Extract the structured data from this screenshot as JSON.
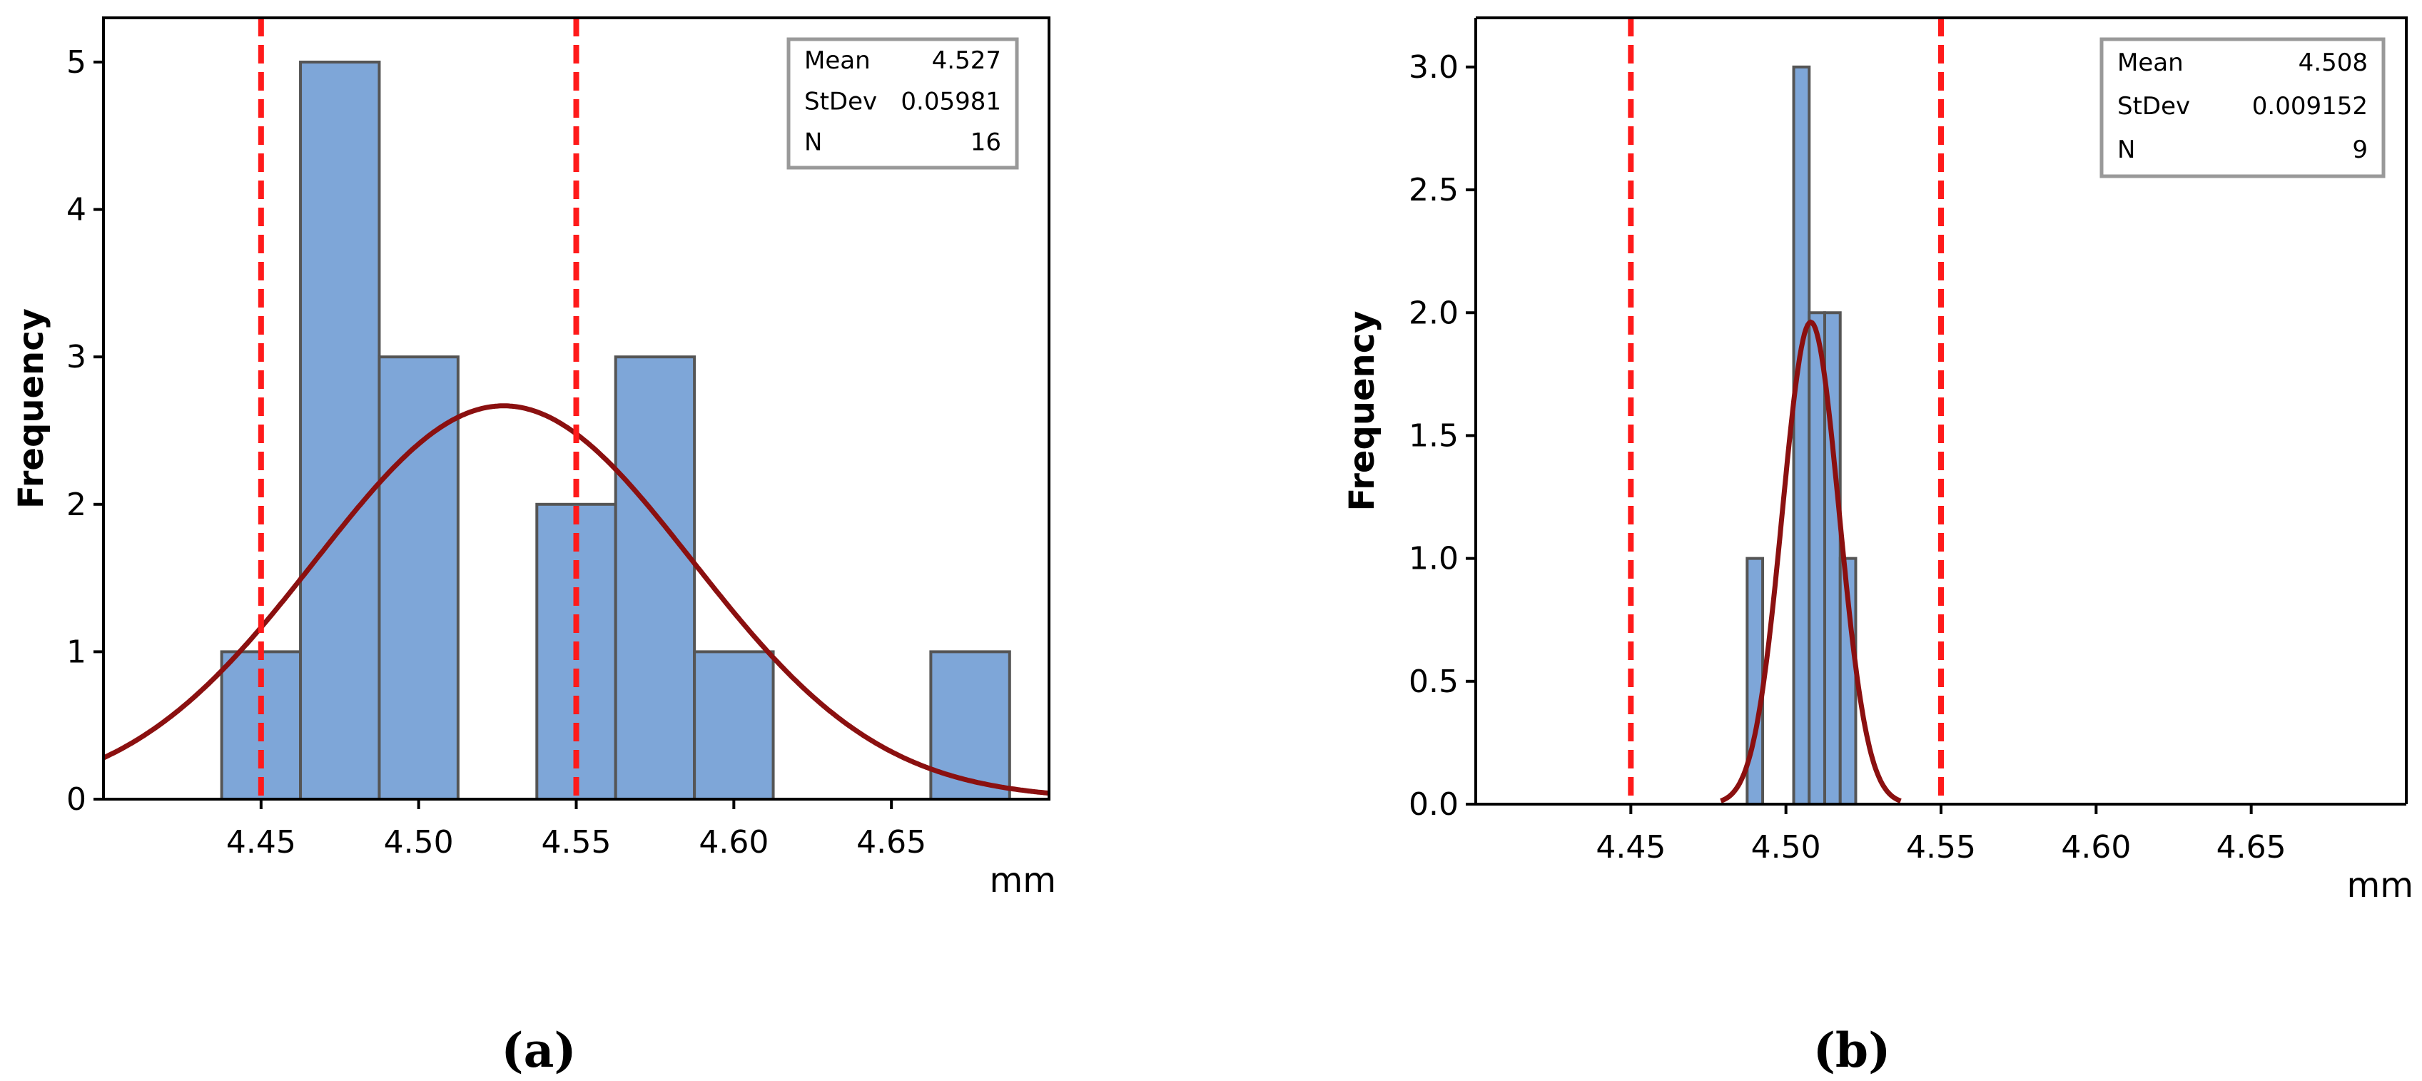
{
  "colors": {
    "bar_fill": "#7ea6d8",
    "bar_stroke": "#555555",
    "curve": "#8b1010",
    "spec_line": "#ff1a1a",
    "axis": "#000000",
    "legend_border": "#999999"
  },
  "chart_data": [
    {
      "type": "histogram",
      "panel_label": "(a)",
      "ylabel": "Frequency",
      "xlabel": "mm",
      "xlim": [
        4.4,
        4.7
      ],
      "ylim": [
        0,
        5.3
      ],
      "grid": false,
      "xticks": [
        4.45,
        4.5,
        4.55,
        4.6,
        4.65
      ],
      "xtick_labels": [
        "4.45",
        "4.50",
        "4.55",
        "4.60",
        "4.65"
      ],
      "yticks": [
        0,
        1,
        2,
        3,
        4,
        5
      ],
      "ytick_labels": [
        "0",
        "1",
        "2",
        "3",
        "4",
        "5"
      ],
      "bins": [
        {
          "left": 4.4375,
          "right": 4.4625,
          "count": 1
        },
        {
          "left": 4.4625,
          "right": 4.4875,
          "count": 5
        },
        {
          "left": 4.4875,
          "right": 4.5125,
          "count": 3
        },
        {
          "left": 4.5375,
          "right": 4.5625,
          "count": 2
        },
        {
          "left": 4.5625,
          "right": 4.5875,
          "count": 3
        },
        {
          "left": 4.5875,
          "right": 4.6125,
          "count": 1
        },
        {
          "left": 4.6625,
          "right": 4.6875,
          "count": 1
        }
      ],
      "normal_fit": {
        "mean": 4.527,
        "stdev": 0.05981,
        "n": 16,
        "bin_width": 0.025
      },
      "spec_limits": [
        4.45,
        4.55
      ],
      "legend_position": "top-right",
      "stats": [
        {
          "label": "Mean",
          "value": "4.527"
        },
        {
          "label": "StDev",
          "value": "0.05981"
        },
        {
          "label": "N",
          "value": "16"
        }
      ]
    },
    {
      "type": "histogram",
      "panel_label": "(b)",
      "ylabel": "Frequency",
      "xlabel": "mm",
      "xlim": [
        4.4,
        4.7
      ],
      "ylim": [
        0,
        3.2
      ],
      "grid": false,
      "xticks": [
        4.45,
        4.5,
        4.55,
        4.6,
        4.65
      ],
      "xtick_labels": [
        "4.45",
        "4.50",
        "4.55",
        "4.60",
        "4.65"
      ],
      "yticks": [
        0,
        0.5,
        1,
        1.5,
        2,
        2.5,
        3
      ],
      "ytick_labels": [
        "0.0",
        "0.5",
        "1.0",
        "1.5",
        "2.0",
        "2.5",
        "3.0"
      ],
      "bins": [
        {
          "left": 4.4875,
          "right": 4.4925,
          "count": 1
        },
        {
          "left": 4.5025,
          "right": 4.5075,
          "count": 3
        },
        {
          "left": 4.5075,
          "right": 4.5125,
          "count": 2
        },
        {
          "left": 4.5125,
          "right": 4.5175,
          "count": 2
        },
        {
          "left": 4.5175,
          "right": 4.5225,
          "count": 1
        }
      ],
      "normal_fit": {
        "mean": 4.508,
        "stdev": 0.009152,
        "n": 9,
        "bin_width": 0.005
      },
      "spec_limits": [
        4.45,
        4.55
      ],
      "legend_position": "top-right",
      "stats": [
        {
          "label": "Mean",
          "value": "4.508"
        },
        {
          "label": "StDev",
          "value": "0.009152"
        },
        {
          "label": "N",
          "value": "9"
        }
      ]
    }
  ]
}
